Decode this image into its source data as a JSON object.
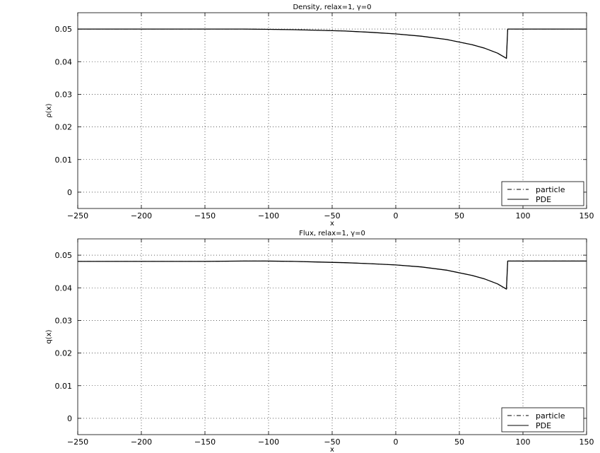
{
  "chart_data": [
    {
      "type": "line",
      "title": "Density, relax=1, γ=0",
      "xlabel": "x",
      "ylabel": "ρ(x)",
      "xlim": [
        -250,
        150
      ],
      "ylim": [
        -0.005,
        0.055
      ],
      "xticks": [
        -250,
        -200,
        -150,
        -100,
        -50,
        0,
        50,
        100,
        150
      ],
      "yticks": [
        0,
        0.01,
        0.02,
        0.03,
        0.04,
        0.05
      ],
      "xtick_labels": [
        "−250",
        "−200",
        "−150",
        "−100",
        "−50",
        "0",
        "50",
        "100",
        "150"
      ],
      "ytick_labels": [
        "0",
        "0.01",
        "0.02",
        "0.03",
        "0.04",
        "0.05"
      ],
      "grid": true,
      "legend": "bottom-right",
      "series": [
        {
          "name": "particle",
          "style": "dashed",
          "x": [
            -250,
            -200,
            -150,
            -120,
            -100,
            -80,
            -60,
            -40,
            -20,
            0,
            20,
            40,
            60,
            70,
            80,
            87,
            88,
            89,
            100,
            120,
            150
          ],
          "y": [
            0.05,
            0.05,
            0.05,
            0.05,
            0.0499,
            0.0498,
            0.0496,
            0.0494,
            0.049,
            0.0485,
            0.0478,
            0.0468,
            0.0452,
            0.0441,
            0.0426,
            0.041,
            0.05,
            0.05,
            0.05,
            0.05,
            0.05
          ]
        },
        {
          "name": "PDE",
          "style": "solid",
          "x": [
            -250,
            -200,
            -150,
            -120,
            -100,
            -80,
            -60,
            -40,
            -20,
            0,
            20,
            40,
            60,
            70,
            80,
            87,
            88,
            89,
            100,
            120,
            150
          ],
          "y": [
            0.05,
            0.05,
            0.05,
            0.05,
            0.0499,
            0.0498,
            0.0496,
            0.0494,
            0.049,
            0.0485,
            0.0478,
            0.0468,
            0.0452,
            0.0441,
            0.0426,
            0.041,
            0.05,
            0.05,
            0.05,
            0.05,
            0.05
          ]
        }
      ]
    },
    {
      "type": "line",
      "title": "Flux, relax=1, γ=0",
      "xlabel": "x",
      "ylabel": "q(x)",
      "xlim": [
        -250,
        150
      ],
      "ylim": [
        -0.005,
        0.055
      ],
      "xticks": [
        -250,
        -200,
        -150,
        -100,
        -50,
        0,
        50,
        100,
        150
      ],
      "yticks": [
        0,
        0.01,
        0.02,
        0.03,
        0.04,
        0.05
      ],
      "xtick_labels": [
        "−250",
        "−200",
        "−150",
        "−100",
        "−50",
        "0",
        "50",
        "100",
        "150"
      ],
      "ytick_labels": [
        "0",
        "0.01",
        "0.02",
        "0.03",
        "0.04",
        "0.05"
      ],
      "grid": true,
      "legend": "bottom-right",
      "series": [
        {
          "name": "particle",
          "style": "dashed",
          "x": [
            -250,
            -200,
            -150,
            -120,
            -100,
            -80,
            -60,
            -40,
            -20,
            0,
            20,
            40,
            60,
            70,
            80,
            87,
            88,
            89,
            100,
            120,
            150
          ],
          "y": [
            0.0481,
            0.0481,
            0.0481,
            0.0482,
            0.0482,
            0.0481,
            0.0479,
            0.0477,
            0.0474,
            0.047,
            0.0464,
            0.0454,
            0.0438,
            0.0427,
            0.0412,
            0.0396,
            0.0482,
            0.0482,
            0.0482,
            0.0482,
            0.0482
          ]
        },
        {
          "name": "PDE",
          "style": "solid",
          "x": [
            -250,
            -200,
            -150,
            -120,
            -100,
            -80,
            -60,
            -40,
            -20,
            0,
            20,
            40,
            60,
            70,
            80,
            87,
            88,
            89,
            100,
            120,
            150
          ],
          "y": [
            0.0481,
            0.0481,
            0.0481,
            0.0482,
            0.0482,
            0.0481,
            0.0479,
            0.0477,
            0.0474,
            0.047,
            0.0464,
            0.0454,
            0.0438,
            0.0427,
            0.0412,
            0.0396,
            0.0482,
            0.0482,
            0.0482,
            0.0482,
            0.0482
          ]
        }
      ]
    }
  ]
}
